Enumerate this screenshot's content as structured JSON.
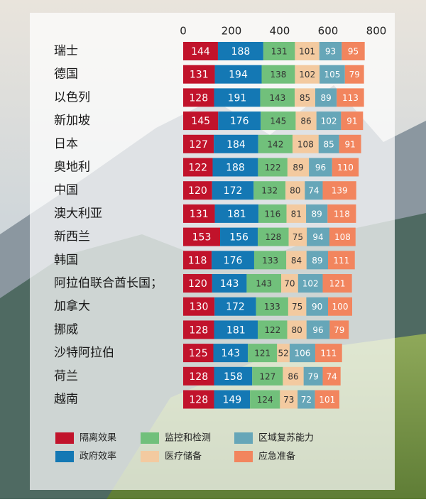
{
  "chart_data": {
    "type": "stacked-bar",
    "orientation": "horizontal",
    "categories": [
      "瑞士",
      "德国",
      "以色列",
      "新加坡",
      "日本",
      "奥地利",
      "中国",
      "澳大利亚",
      "新西兰",
      "韩国",
      "阿拉伯联合酋长国；",
      "加拿大",
      "挪威",
      "沙特阿拉伯",
      "荷兰",
      "越南"
    ],
    "series": [
      {
        "name": "隔离效果",
        "color": "#c1132b",
        "values": [
          144,
          131,
          128,
          145,
          127,
          122,
          120,
          131,
          153,
          118,
          120,
          130,
          128,
          125,
          128,
          128
        ]
      },
      {
        "name": "政府效率",
        "color": "#1478b4",
        "values": [
          188,
          194,
          191,
          176,
          184,
          188,
          172,
          181,
          156,
          176,
          143,
          172,
          181,
          143,
          158,
          149
        ]
      },
      {
        "name": "监控和检测",
        "color": "#71c07b",
        "values": [
          131,
          138,
          143,
          145,
          142,
          122,
          132,
          116,
          128,
          133,
          143,
          133,
          122,
          121,
          127,
          124
        ]
      },
      {
        "name": "医疗储备",
        "color": "#f3caa0",
        "values": [
          101,
          102,
          85,
          86,
          108,
          89,
          80,
          81,
          75,
          84,
          70,
          75,
          80,
          52,
          86,
          73
        ]
      },
      {
        "name": "区域复苏能力",
        "color": "#66a6b8",
        "values": [
          93,
          105,
          89,
          102,
          85,
          96,
          74,
          89,
          94,
          89,
          102,
          90,
          96,
          106,
          79,
          72
        ]
      },
      {
        "name": "应急准备",
        "color": "#f2855e",
        "values": [
          95,
          79,
          113,
          91,
          91,
          110,
          139,
          118,
          108,
          111,
          121,
          100,
          79,
          111,
          74,
          101
        ]
      }
    ],
    "xlim": [
      0,
      800
    ],
    "xticks": [
      0,
      200,
      400,
      600,
      800
    ],
    "grid": false,
    "legend": "bottom"
  }
}
